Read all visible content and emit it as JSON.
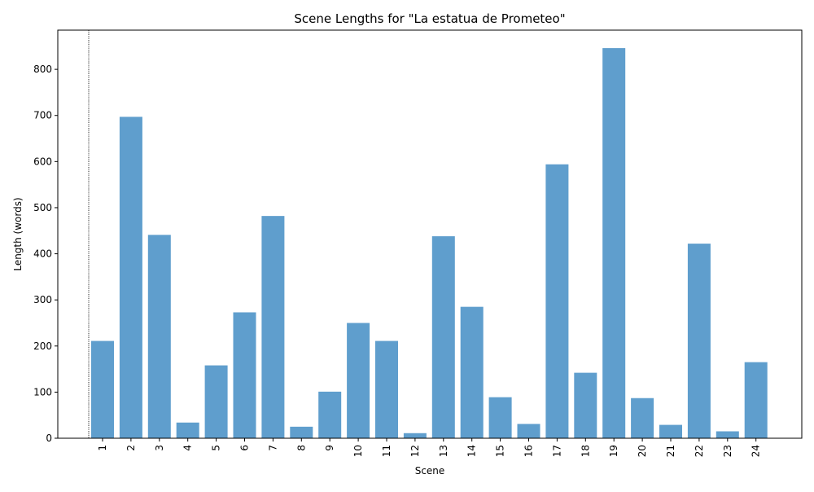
{
  "chart_data": {
    "type": "bar",
    "title": "Scene Lengths for \"La estatua de Prometeo\"",
    "xlabel": "Scene",
    "ylabel": "Length (words)",
    "categories": [
      "1",
      "2",
      "3",
      "4",
      "5",
      "6",
      "7",
      "8",
      "9",
      "10",
      "11",
      "12",
      "13",
      "14",
      "15",
      "16",
      "17",
      "18",
      "19",
      "20",
      "21",
      "22",
      "23",
      "24"
    ],
    "values": [
      211,
      697,
      441,
      34,
      158,
      273,
      482,
      25,
      101,
      250,
      211,
      11,
      438,
      285,
      89,
      31,
      594,
      142,
      846,
      87,
      29,
      422,
      15,
      165
    ],
    "ylim": [
      0,
      885
    ],
    "yticks": [
      0,
      100,
      200,
      300,
      400,
      500,
      600,
      700,
      800
    ],
    "bar_color": "#5f9ecd",
    "grid": false,
    "marker_line": {
      "style": "dotted",
      "color": "#000000"
    }
  }
}
